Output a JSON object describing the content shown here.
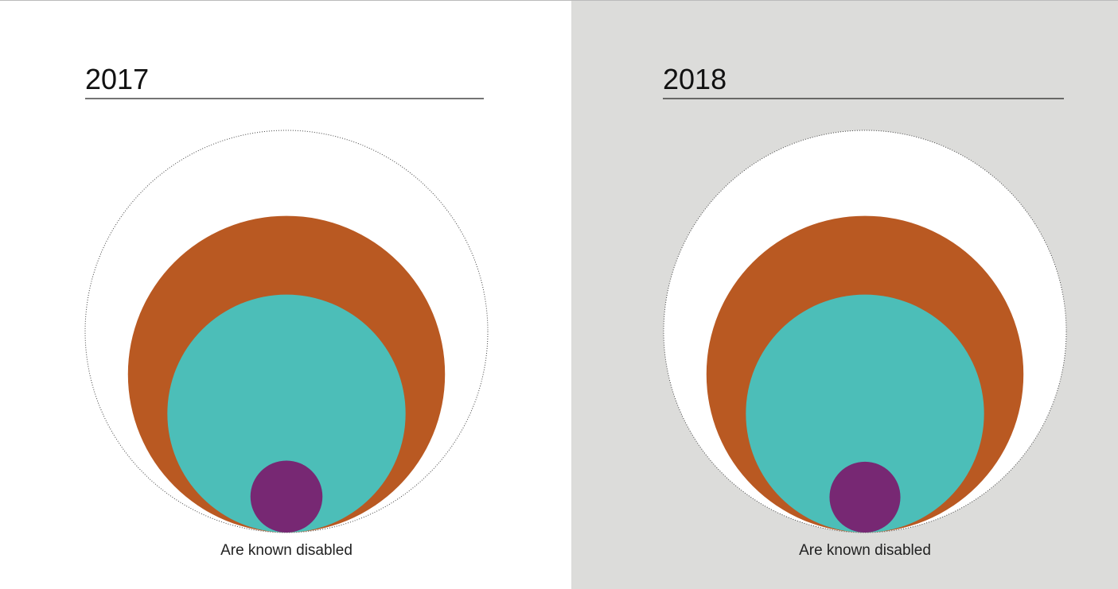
{
  "chart_data": [
    {
      "type": "nested-circle",
      "title": "2017",
      "background": "#ffffff",
      "label": "Are known disabled",
      "circles": [
        {
          "value": 100,
          "color": "#ffffff"
        },
        {
          "value": 62,
          "color": "#b95922"
        },
        {
          "value": 35,
          "color": "#4cbeb8"
        },
        {
          "value": 3.2,
          "color": "#772873"
        }
      ]
    },
    {
      "type": "nested-circle",
      "title": "2018",
      "background": "#dcdcda",
      "label": "Are known disabled",
      "circles": [
        {
          "value": 100,
          "color": "#ffffff"
        },
        {
          "value": 62,
          "color": "#b95922"
        },
        {
          "value": 35,
          "color": "#4cbeb8"
        },
        {
          "value": 3.1,
          "color": "#772873"
        }
      ]
    }
  ]
}
